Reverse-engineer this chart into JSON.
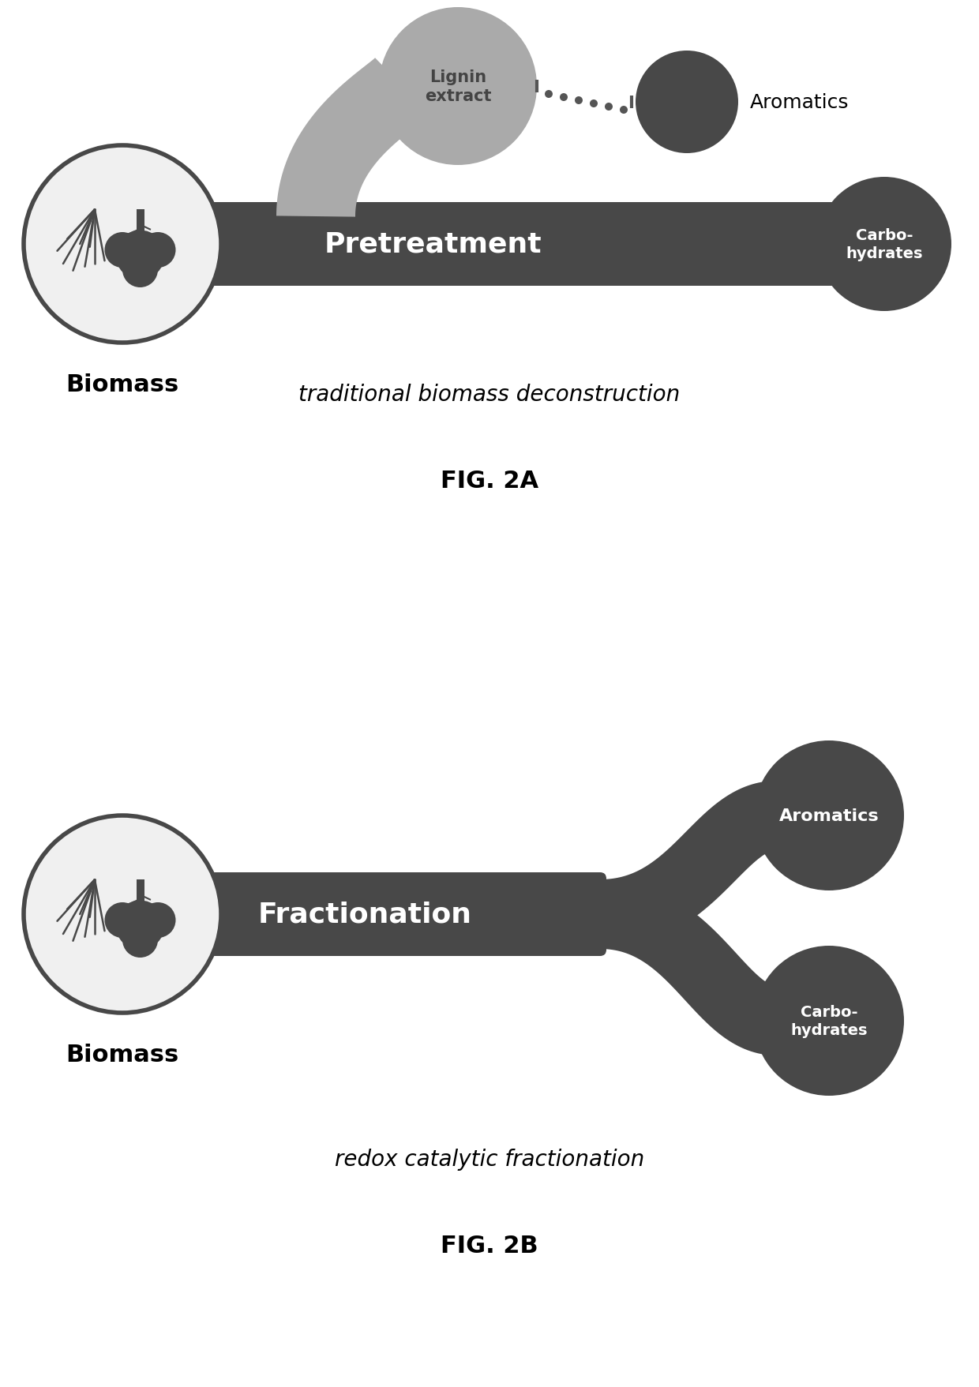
{
  "background_color": "#ffffff",
  "dark_color": "#484848",
  "pipe_color": "#aaaaaa",
  "pipe_dark": "#888888",
  "white": "#ffffff",
  "black": "#000000",
  "fig2a": {
    "title_caption": "traditional biomass deconstruction",
    "fig_label": "FIG. 2A",
    "pretreatment_text": "Pretreatment",
    "biomass_text": "Biomass",
    "lignin_text": "Lignin\nextract",
    "aromatics_text": "Aromatics",
    "carbo_text": "Carbo-\nhydrates"
  },
  "fig2b": {
    "title_caption": "redox catalytic fractionation",
    "fig_label": "FIG. 2B",
    "fractionation_text": "Fractionation",
    "biomass_text": "Biomass",
    "aromatics_text": "Aromatics",
    "carbo_text": "Carbo-\nhydrates"
  }
}
